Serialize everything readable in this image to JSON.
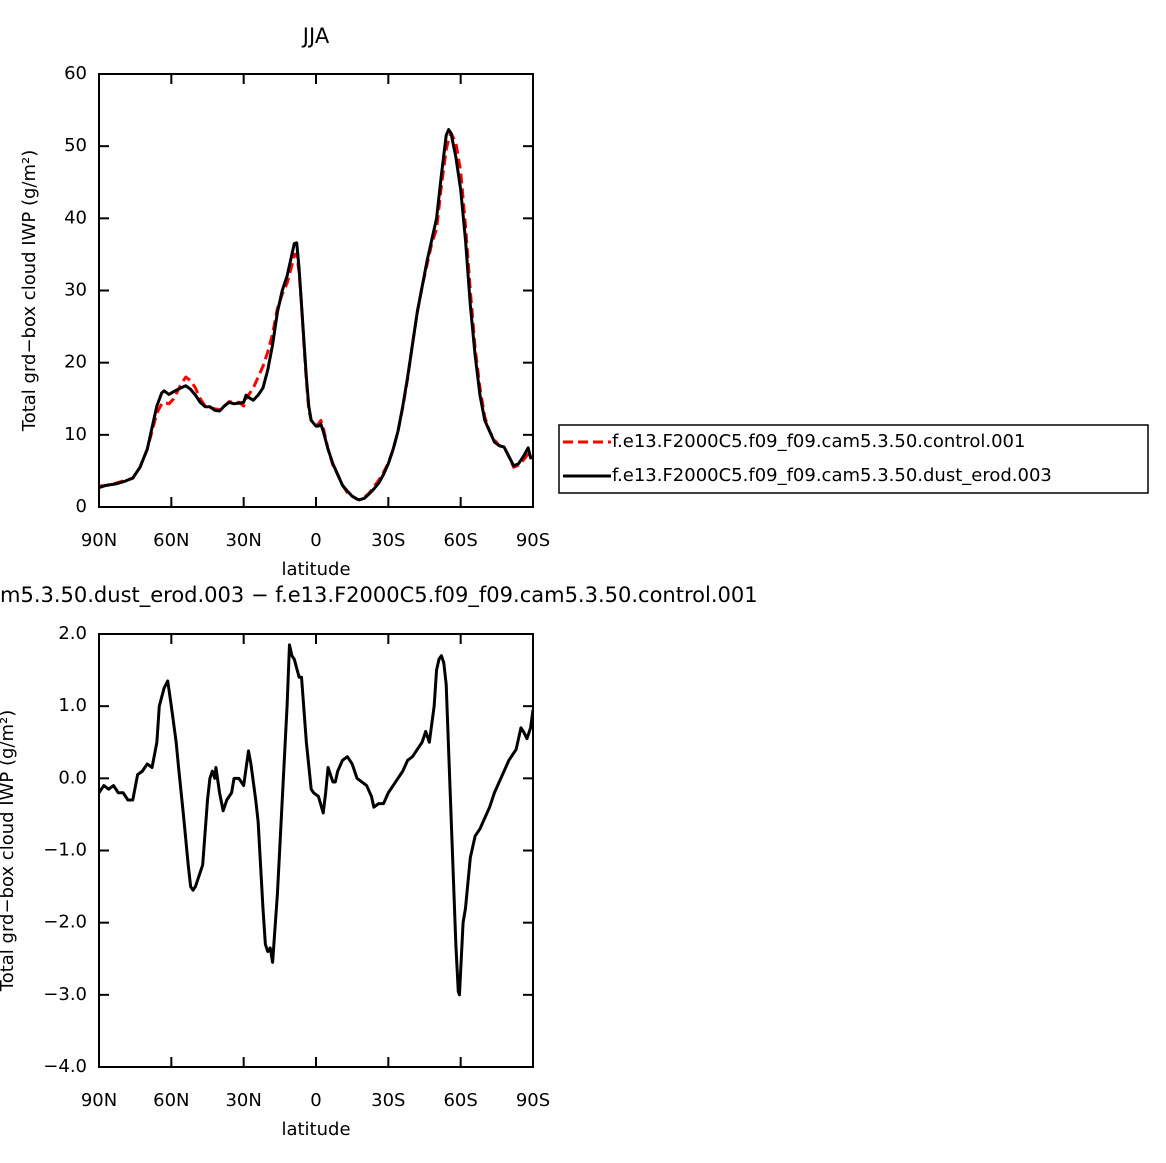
{
  "chart_data": [
    {
      "type": "line",
      "title": "JJA",
      "xlabel": "latitude",
      "ylabel": "Total grd−box cloud IWP (g/m²)",
      "xlim": [
        90,
        -90
      ],
      "xticks": [
        {
          "value": 90,
          "label": "90N"
        },
        {
          "value": 60,
          "label": "60N"
        },
        {
          "value": 30,
          "label": "30N"
        },
        0,
        {
          "value": -30,
          "label": "30S"
        },
        {
          "value": -60,
          "label": "60S"
        },
        {
          "value": -90,
          "label": "90S"
        }
      ],
      "ylim": [
        0,
        60
      ],
      "yticks": [
        0,
        10,
        20,
        30,
        40,
        50,
        60
      ],
      "legend": "right",
      "x": [
        90,
        87,
        83,
        79,
        76,
        73,
        70,
        68,
        66,
        64,
        63,
        61,
        59,
        56,
        54,
        52,
        50,
        48,
        46,
        44,
        42,
        40,
        38,
        36,
        34,
        32,
        30,
        29,
        28,
        26,
        24,
        22,
        20,
        18,
        16,
        14,
        12,
        10,
        9,
        8,
        7,
        6,
        5,
        4,
        3,
        2,
        0,
        -1,
        -2,
        -3,
        -5,
        -7,
        -9,
        -11,
        -13,
        -15,
        -17,
        -18,
        -20,
        -22,
        -24,
        -26,
        -28,
        -30,
        -32,
        -34,
        -36,
        -38,
        -40,
        -42,
        -44,
        -46,
        -48,
        -50,
        -52,
        -54,
        -55,
        -56,
        -58,
        -60,
        -62,
        -64,
        -66,
        -68,
        -70,
        -72,
        -74,
        -76,
        -78,
        -80,
        -82,
        -84,
        -86,
        -88,
        -89,
        -90
      ],
      "series": [
        {
          "name": "f.e13.F2000C5.f09_f09.cam5.3.50.control.001",
          "color": "#ff0000",
          "line_style": "dashed",
          "values": [
            2.9,
            3.0,
            3.3,
            3.7,
            4.0,
            5.5,
            8,
            10.5,
            13,
            14.3,
            14.5,
            14.3,
            15,
            17,
            18,
            17.5,
            16.5,
            15,
            14,
            13.8,
            13.6,
            13.5,
            14,
            14.6,
            14.5,
            14.5,
            14,
            15,
            15.5,
            16.5,
            18,
            19.5,
            21.5,
            24,
            27.5,
            29.5,
            31,
            33.5,
            35,
            35,
            32.5,
            28,
            22.5,
            17.5,
            13.5,
            12,
            11.3,
            11.5,
            12,
            11,
            8,
            5.8,
            4.5,
            3,
            2,
            1.5,
            1.1,
            1.0,
            1.3,
            1.9,
            2.8,
            3.7,
            4.8,
            6.1,
            8,
            10.5,
            13.8,
            17.8,
            22.5,
            27,
            30.5,
            33.5,
            36.5,
            38.5,
            44.5,
            49.5,
            51,
            51.8,
            50.5,
            46.5,
            39,
            30,
            22,
            16.5,
            12.5,
            10.5,
            9.3,
            8.5,
            8.3,
            7,
            5.5,
            5.8,
            6.5,
            7.4,
            6.8,
            7.0
          ]
        },
        {
          "name": "f.e13.F2000C5.f09_f09.cam5.3.50.dust_erod.003",
          "color": "#000000",
          "line_style": "solid",
          "values": [
            2.7,
            3.0,
            3.2,
            3.6,
            4.0,
            5.5,
            8,
            11,
            14,
            15.8,
            16.1,
            15.6,
            16,
            16.5,
            16.8,
            16.3,
            15.5,
            14.5,
            13.9,
            13.9,
            13.4,
            13.3,
            14,
            14.5,
            14.3,
            14.4,
            14.5,
            15.5,
            15.2,
            14.8,
            15.5,
            16.5,
            19,
            22.5,
            27,
            30,
            32,
            35,
            36.5,
            36.6,
            33,
            28,
            23,
            18,
            14,
            12,
            11.2,
            11.2,
            11.5,
            10.5,
            8,
            6,
            4.5,
            3,
            2.2,
            1.5,
            1.1,
            1.0,
            1.2,
            1.8,
            2.5,
            3.3,
            4.5,
            6,
            8,
            10.5,
            14,
            18,
            22.5,
            27,
            30.5,
            34,
            37,
            40,
            46,
            51.5,
            52.3,
            51.8,
            48.5,
            44,
            37,
            28,
            21,
            15.5,
            12,
            10.5,
            9,
            8.5,
            8.3,
            7,
            5.7,
            6.0,
            7,
            8.2,
            6.8,
            7
          ]
        }
      ]
    },
    {
      "type": "line",
      "title": "m5.3.50.dust_erod.003 − f.e13.F2000C5.f09_f09.cam5.3.50.control.001",
      "xlabel": "latitude",
      "ylabel": "Total grd−box cloud IWP (g/m²)",
      "xlim": [
        90,
        -90
      ],
      "xticks": [
        {
          "value": 90,
          "label": "90N"
        },
        {
          "value": 60,
          "label": "60N"
        },
        {
          "value": 30,
          "label": "30N"
        },
        0,
        {
          "value": -30,
          "label": "30S"
        },
        {
          "value": -60,
          "label": "60S"
        },
        {
          "value": -90,
          "label": "90S"
        }
      ],
      "ylim": [
        -4,
        2
      ],
      "yticks": [
        {
          "value": -4,
          "label": "−4.0"
        },
        {
          "value": -3,
          "label": "−3.0"
        },
        {
          "value": -2,
          "label": "−2.0"
        },
        {
          "value": -1,
          "label": "−1.0"
        },
        {
          "value": 0,
          "label": "0.0"
        },
        {
          "value": 1,
          "label": "1.0"
        },
        {
          "value": 2,
          "label": "2.0"
        }
      ],
      "x": [
        90,
        88,
        86,
        84,
        82,
        80,
        78,
        76,
        74,
        72,
        70,
        68,
        66,
        65,
        63,
        61.5,
        60,
        58,
        57,
        55,
        53,
        52,
        51,
        50,
        48,
        47,
        45,
        44,
        43,
        42,
        41.5,
        40,
        38.5,
        37,
        35,
        34,
        32,
        30,
        28,
        27,
        25,
        24,
        22,
        21,
        20,
        19,
        18,
        16,
        14,
        12,
        11,
        10,
        9,
        7,
        6,
        4,
        2,
        1,
        -1,
        -3,
        -4,
        -5,
        -6,
        -7,
        -8,
        -9,
        -11,
        -13,
        -15,
        -17,
        -19,
        -21,
        -23,
        -24,
        -26,
        -28,
        -30,
        -32,
        -34,
        -36,
        -38,
        -40,
        -42,
        -44,
        -45.5,
        -47,
        -49,
        -50,
        -51,
        -52,
        -53,
        -54,
        -56,
        -58,
        -59,
        -59.5,
        -61,
        -62,
        -64,
        -66,
        -68,
        -70,
        -72,
        -74,
        -76,
        -78,
        -80,
        -81,
        -83,
        -85,
        -86,
        -87.5,
        -89,
        -90
      ],
      "series": [
        {
          "color": "#000000",
          "line_style": "solid",
          "values": [
            -0.2,
            -0.1,
            -0.15,
            -0.1,
            -0.2,
            -0.2,
            -0.3,
            -0.3,
            0.05,
            0.1,
            0.2,
            0.15,
            0.5,
            1.0,
            1.25,
            1.35,
            1.0,
            0.5,
            0.15,
            -0.5,
            -1.2,
            -1.5,
            -1.55,
            -1.5,
            -1.3,
            -1.2,
            -0.3,
            0,
            0.1,
            0,
            0.15,
            -0.2,
            -0.45,
            -0.3,
            -0.2,
            0,
            0,
            -0.1,
            0.38,
            0.2,
            -0.3,
            -0.6,
            -1.8,
            -2.3,
            -2.4,
            -2.35,
            -2.55,
            -1.6,
            -0.3,
            1.0,
            1.85,
            1.7,
            1.65,
            1.4,
            1.4,
            0.5,
            -0.15,
            -0.2,
            -0.25,
            -0.48,
            -0.2,
            0.15,
            0.05,
            -0.05,
            -0.05,
            0.1,
            0.25,
            0.3,
            0.2,
            0,
            -0.05,
            -0.1,
            -0.25,
            -0.4,
            -0.35,
            -0.35,
            -0.2,
            -0.1,
            0,
            0.1,
            0.25,
            0.3,
            0.4,
            0.5,
            0.65,
            0.5,
            1.0,
            1.5,
            1.65,
            1.7,
            1.6,
            1.3,
            -0.5,
            -2.3,
            -2.95,
            -3.0,
            -2.0,
            -1.8,
            -1.1,
            -0.8,
            -0.7,
            -0.55,
            -0.4,
            -0.2,
            -0.05,
            0.1,
            0.25,
            0.3,
            0.4,
            0.7,
            0.65,
            0.55,
            0.7,
            0.95
          ]
        }
      ]
    }
  ]
}
